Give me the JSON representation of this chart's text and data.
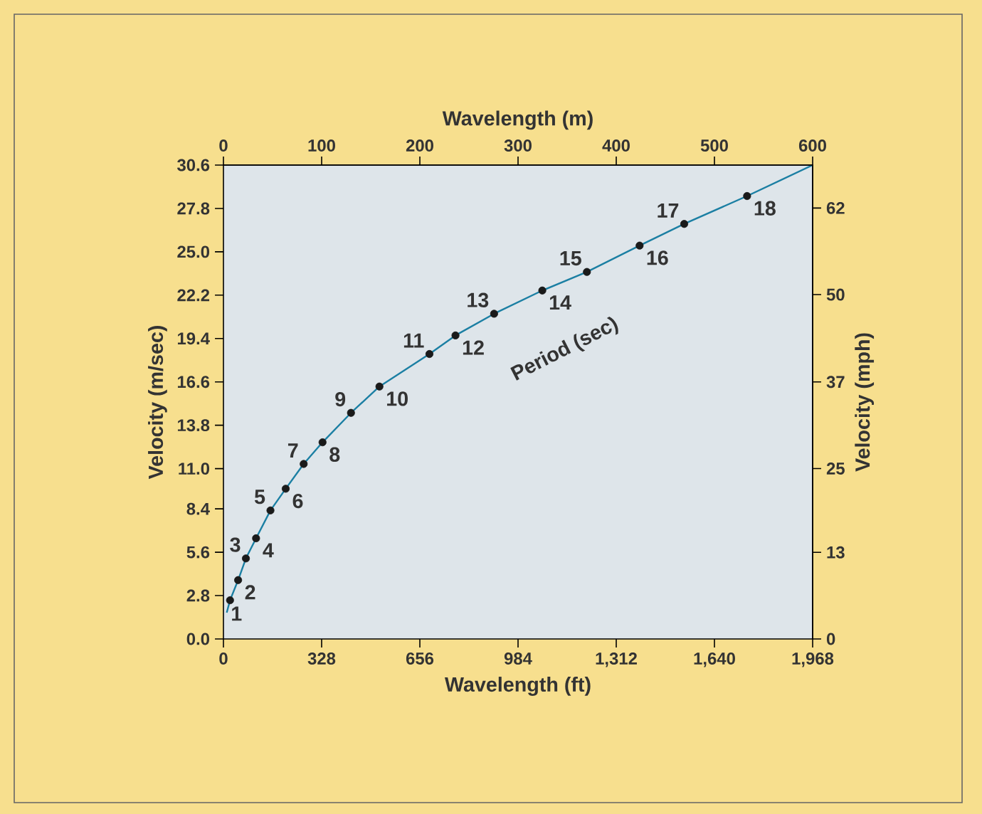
{
  "chart_data": {
    "type": "line",
    "xlabel": "Wavelength (ft)",
    "x2label": "Wavelength (m)",
    "ylabel": "Velocity (m/sec)",
    "y2label": "Velocity (mph)",
    "xlim": [
      0,
      1968
    ],
    "xticks": [
      0,
      328,
      656,
      984,
      {
        "value": 1312,
        "label": "1,312"
      },
      {
        "value": 1640,
        "label": "1,640"
      },
      {
        "value": 1968,
        "label": "1,968"
      }
    ],
    "x2lim": [
      0,
      600
    ],
    "x2ticks": [
      0,
      100,
      200,
      300,
      400,
      500,
      600
    ],
    "ylim": [
      0,
      30.6
    ],
    "yticks": [
      {
        "value": 0,
        "label": "0.0"
      },
      2.8,
      5.6,
      8.4,
      {
        "value": 11,
        "label": "11.0"
      },
      13.8,
      16.6,
      19.4,
      22.2,
      {
        "value": 25,
        "label": "25.0"
      },
      27.8,
      30.6
    ],
    "y2lim": [
      0,
      68.4
    ],
    "y2ticks": [
      0,
      {
        "value": 12.5,
        "label": "13"
      },
      {
        "value": 24.6,
        "label": "25"
      },
      {
        "value": 37.1,
        "label": "37"
      },
      {
        "value": 49.7,
        "label": "50"
      },
      {
        "value": 62.2,
        "label": "62"
      }
    ],
    "grid": false,
    "legend": false,
    "series": [
      {
        "color": "#1b7fa3",
        "marker": "none",
        "x": [
          11,
          22,
          49,
          75,
          109,
          157,
          208,
          268,
          331,
          426,
          521,
          688,
          775,
          904,
          1065,
          1214,
          1390,
          1539,
          1749,
          1968
        ],
        "values": [
          1.7,
          2.5,
          3.8,
          5.2,
          6.5,
          8.3,
          9.7,
          11.3,
          12.7,
          14.6,
          16.3,
          18.4,
          19.6,
          21.0,
          22.5,
          23.7,
          25.4,
          26.8,
          28.6,
          30.6
        ]
      },
      {
        "type": "scatter",
        "color": "#1a1a1a",
        "marker": "circle",
        "x": [
          22,
          49,
          75,
          109,
          157,
          208,
          268,
          331,
          426,
          521,
          688,
          775,
          904,
          1065,
          1214,
          1390,
          1539,
          1749
        ],
        "values": [
          2.5,
          3.8,
          5.2,
          6.5,
          8.3,
          9.7,
          11.3,
          12.7,
          14.6,
          16.3,
          18.4,
          19.6,
          21.0,
          22.5,
          23.7,
          25.4,
          26.8,
          28.6
        ]
      }
    ],
    "annotations": [
      {
        "text": "1",
        "x": 22,
        "y": 2.5
      },
      {
        "text": "2",
        "x": 49,
        "y": 3.8
      },
      {
        "text": "3",
        "x": 75,
        "y": 5.2
      },
      {
        "text": "4",
        "x": 109,
        "y": 6.5
      },
      {
        "text": "5",
        "x": 157,
        "y": 8.3
      },
      {
        "text": "6",
        "x": 208,
        "y": 9.7
      },
      {
        "text": "7",
        "x": 268,
        "y": 11.3
      },
      {
        "text": "8",
        "x": 331,
        "y": 12.7
      },
      {
        "text": "9",
        "x": 426,
        "y": 14.6
      },
      {
        "text": "10",
        "x": 521,
        "y": 16.3
      },
      {
        "text": "11",
        "x": 688,
        "y": 18.4
      },
      {
        "text": "12",
        "x": 775,
        "y": 19.6
      },
      {
        "text": "13",
        "x": 904,
        "y": 21.0
      },
      {
        "text": "14",
        "x": 1065,
        "y": 22.5
      },
      {
        "text": "15",
        "x": 1214,
        "y": 23.7
      },
      {
        "text": "16",
        "x": 1390,
        "y": 25.4
      },
      {
        "text": "17",
        "x": 1539,
        "y": 26.8
      },
      {
        "text": "18",
        "x": 1749,
        "y": 28.6
      },
      "Period (sec)"
    ]
  }
}
